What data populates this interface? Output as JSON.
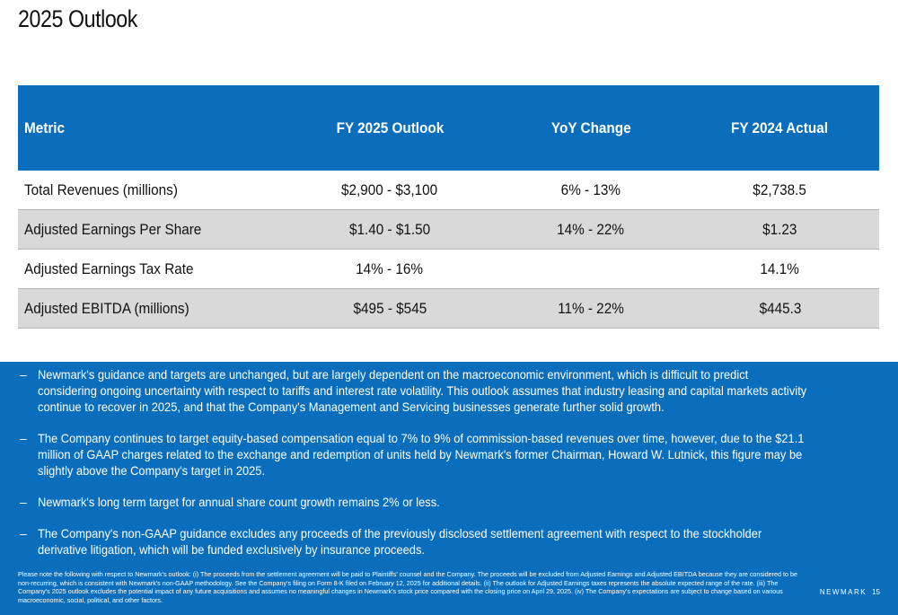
{
  "slide": {
    "title": "2025 Outlook",
    "brand": "NEWMARK",
    "page_number": "15"
  },
  "table": {
    "headers": [
      "Metric",
      "FY 2025 Outlook",
      "YoY Change",
      "FY 2024 Actual"
    ],
    "rows": [
      [
        "Total Revenues (millions)",
        "$2,900  - $3,100",
        "6%  - 13%",
        "$2,738.5"
      ],
      [
        "Adjusted Earnings Per Share",
        "$1.40  - $1.50",
        "14%  - 22%",
        "$1.23"
      ],
      [
        "Adjusted Earnings Tax Rate",
        "14%  - 16%",
        "",
        "14.1%"
      ],
      [
        "Adjusted EBITDA (millions)",
        "$495  - $545",
        "11%  - 22%",
        "$445.3"
      ]
    ]
  },
  "bullets": [
    "Newmark's guidance and targets are unchanged, but are largely dependent on the macroeconomic environment, which is difficult to predict considering ongoing uncertainty with respect to tariffs and interest rate volatility. This outlook assumes that industry leasing and capital markets activity continue to recover in 2025, and that the Company's Management and Servicing businesses generate further solid growth.",
    "The Company continues to target equity-based compensation equal to 7% to 9% of commission-based revenues over time, however, due to the $21.1 million of GAAP charges related to the exchange and redemption of units held by Newmark's former Chairman, Howard W. Lutnick, this figure may be slightly above the Company's target in 2025.",
    "Newmark's long term target for annual share count growth remains 2% or less.",
    "The Company's non-GAAP guidance excludes any proceeds of the previously disclosed settlement agreement with respect to the stockholder derivative litigation, which will be funded exclusively by insurance proceeds."
  ],
  "bullet_marker": "–",
  "footnote": "Please note the following with respect to Newmark's outlook: (i) The proceeds from the settlement agreement will be paid to Plaintiffs' counsel and the Company. The proceeds will be excluded from Adjusted Earnings and Adjusted EBITDA because they are considered to be non-recurring, which is consistent with Newmark's non-GAAP methodology. See the Company's filing on Form 8-K filed on February 12, 2025 for additional details. (ii) The outlook for Adjusted Earnings taxes represents the absolute expected range of the rate. (iii) The Company's 2025 outlook excludes the potential impact of any future acquisitions and assumes no meaningful changes in Newmark's stock price compared with the closing price on April 29, 2025. (iv) The Company's expectations are subject to change based on various macroeconomic, social, political, and other factors.",
  "colors": {
    "brand_blue": "#0a6ebd",
    "row_shade": "#d9d9d9"
  }
}
